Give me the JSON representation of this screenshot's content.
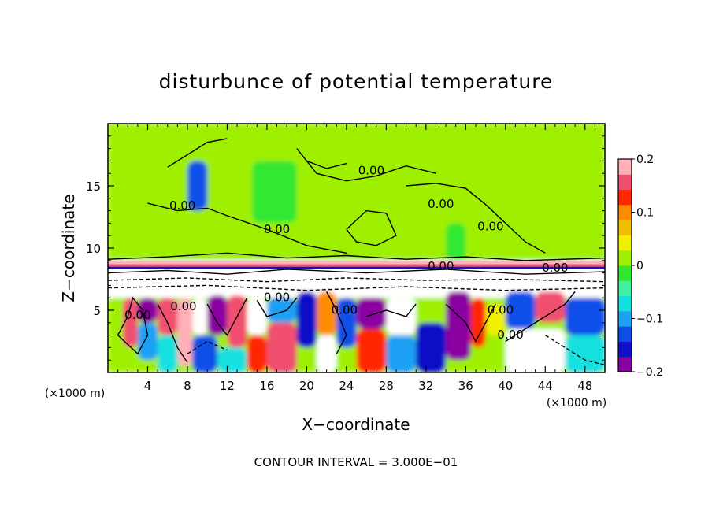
{
  "chart_data": {
    "type": "heatmap",
    "title": "disturbunce of potential temperature",
    "xlabel": "X−coordinate",
    "ylabel": "Z−coordinate",
    "x_unit": "(×1000 m)",
    "y_unit": "(×1000 m)",
    "xlim": [
      0,
      50
    ],
    "ylim": [
      0,
      20
    ],
    "x_ticks": [
      4,
      8,
      12,
      16,
      20,
      24,
      28,
      32,
      36,
      40,
      44,
      48
    ],
    "y_ticks": [
      5,
      10,
      15
    ],
    "contour_interval_text": "CONTOUR INTERVAL = 3.000E−01",
    "contour_labels": [
      {
        "text": "0.00",
        "x": 26.5,
        "y": 16.2
      },
      {
        "text": "0.00",
        "x": 7.5,
        "y": 13.4
      },
      {
        "text": "0.00",
        "x": 33.5,
        "y": 13.5
      },
      {
        "text": "0.00",
        "x": 17.0,
        "y": 11.5
      },
      {
        "text": "0.00",
        "x": 38.5,
        "y": 11.7
      },
      {
        "text": "0.00",
        "x": 33.5,
        "y": 8.5
      },
      {
        "text": "0.00",
        "x": 45.0,
        "y": 8.4
      },
      {
        "text": "0.00",
        "x": 17.0,
        "y": 6.0
      },
      {
        "text": "0.00",
        "x": 3.0,
        "y": 4.6
      },
      {
        "text": "0.00",
        "x": 7.6,
        "y": 5.3
      },
      {
        "text": "0.00",
        "x": 23.8,
        "y": 5.0
      },
      {
        "text": "0.00",
        "x": 39.5,
        "y": 5.0
      },
      {
        "text": "0.00",
        "x": 40.5,
        "y": 3.0
      }
    ],
    "colorbar": {
      "min": -0.2,
      "max": 0.2,
      "tick_values": [
        0.2,
        0.1,
        0,
        -0.1,
        -0.2
      ],
      "tick_labels": [
        "0.2",
        "0.1",
        "0",
        "−0.1",
        "−0.2"
      ],
      "colors": [
        "#8B00A0",
        "#1010C8",
        "#0B4FE8",
        "#1EA0F5",
        "#12E0E0",
        "#40F0A0",
        "#30E830",
        "#9FF000",
        "#F0F000",
        "#F0C000",
        "#FF8C00",
        "#FF2800",
        "#F05070",
        "#FFB0B8"
      ]
    },
    "cells": [
      {
        "x0": 0,
        "x1": 50,
        "y0": 9,
        "y1": 20,
        "value": 0.0
      },
      {
        "x0": 0,
        "x1": 50,
        "y0": 0,
        "y1": 6,
        "value": 0.0
      },
      {
        "x0": 0,
        "x1": 50,
        "y0": 6,
        "y1": 9,
        "value": null
      },
      {
        "x0": 0,
        "x1": 50,
        "y0": 8.7,
        "y1": 9.0,
        "value": 0.2
      },
      {
        "x0": 0,
        "x1": 50,
        "y0": 8.5,
        "y1": 8.7,
        "value": 0.15
      },
      {
        "x0": 0,
        "x1": 50,
        "y0": 8.35,
        "y1": 8.5,
        "value": -0.15
      },
      {
        "x0": 14.5,
        "x1": 19,
        "y0": 12,
        "y1": 17,
        "value": -0.01
      },
      {
        "x0": 34,
        "x1": 36,
        "y0": 9,
        "y1": 12,
        "value": -0.02
      },
      {
        "x0": 8,
        "x1": 10,
        "y0": 13,
        "y1": 17,
        "value": -0.12
      },
      {
        "x0": 0,
        "x1": 1.5,
        "y0": 3.5,
        "y1": 5,
        "value": 0.0
      },
      {
        "x0": 1.5,
        "x1": 3,
        "y0": 2,
        "y1": 6,
        "value": 0.16
      },
      {
        "x0": 3,
        "x1": 5,
        "y0": 4,
        "y1": 6,
        "value": -0.18
      },
      {
        "x0": 3,
        "x1": 5,
        "y0": 1,
        "y1": 4,
        "value": -0.1
      },
      {
        "x0": 5,
        "x1": 7,
        "y0": 3,
        "y1": 6,
        "value": 0.16
      },
      {
        "x0": 5,
        "x1": 7,
        "y0": 0,
        "y1": 3,
        "value": -0.06
      },
      {
        "x0": 7,
        "x1": 8.5,
        "y0": 0.5,
        "y1": 6,
        "value": 0.18
      },
      {
        "x0": 8.5,
        "x1": 10,
        "y0": 3,
        "y1": 6,
        "value": null
      },
      {
        "x0": 8.5,
        "x1": 11,
        "y0": 0,
        "y1": 3,
        "value": -0.14
      },
      {
        "x0": 10,
        "x1": 12,
        "y0": 3,
        "y1": 6.2,
        "value": -0.18
      },
      {
        "x0": 12,
        "x1": 14,
        "y0": 2,
        "y1": 6.2,
        "value": 0.15
      },
      {
        "x0": 11,
        "x1": 14,
        "y0": 0,
        "y1": 2,
        "value": -0.08
      },
      {
        "x0": 14,
        "x1": 16,
        "y0": 3,
        "y1": 6,
        "value": null
      },
      {
        "x0": 14,
        "x1": 16,
        "y0": 0,
        "y1": 3,
        "value": 0.12
      },
      {
        "x0": 16,
        "x1": 19,
        "y0": 4,
        "y1": 6,
        "value": -0.1
      },
      {
        "x0": 16,
        "x1": 19,
        "y0": 0,
        "y1": 4,
        "value": 0.17
      },
      {
        "x0": 19,
        "x1": 21,
        "y0": 2,
        "y1": 6.5,
        "value": -0.16
      },
      {
        "x0": 21,
        "x1": 23,
        "y0": 3,
        "y1": 6.5,
        "value": 0.1
      },
      {
        "x0": 21,
        "x1": 23,
        "y0": 0,
        "y1": 3,
        "value": null
      },
      {
        "x0": 23,
        "x1": 25,
        "y0": 2,
        "y1": 6,
        "value": -0.12
      },
      {
        "x0": 25,
        "x1": 28,
        "y0": 3.5,
        "y1": 6,
        "value": -0.18
      },
      {
        "x0": 25,
        "x1": 28,
        "y0": 0,
        "y1": 3.5,
        "value": 0.14
      },
      {
        "x0": 28,
        "x1": 31,
        "y0": 3,
        "y1": 6,
        "value": null
      },
      {
        "x0": 28,
        "x1": 31,
        "y0": 0,
        "y1": 3,
        "value": -0.1
      },
      {
        "x0": 31,
        "x1": 34,
        "y0": 4,
        "y1": 6,
        "value": 0.02
      },
      {
        "x0": 31,
        "x1": 34,
        "y0": 0,
        "y1": 4,
        "value": -0.16
      },
      {
        "x0": 34,
        "x1": 36.5,
        "y0": 1,
        "y1": 6.5,
        "value": -0.2
      },
      {
        "x0": 36.5,
        "x1": 38,
        "y0": 2,
        "y1": 6,
        "value": 0.12
      },
      {
        "x0": 38,
        "x1": 40,
        "y0": 3,
        "y1": 5.5,
        "value": 0.04
      },
      {
        "x0": 40,
        "x1": 43,
        "y0": 3.5,
        "y1": 6.5,
        "value": -0.12
      },
      {
        "x0": 43,
        "x1": 46,
        "y0": 4,
        "y1": 6.5,
        "value": 0.15
      },
      {
        "x0": 40,
        "x1": 46,
        "y0": 0,
        "y1": 3.5,
        "value": null
      },
      {
        "x0": 46,
        "x1": 50,
        "y0": 3,
        "y1": 6,
        "value": -0.14
      },
      {
        "x0": 46,
        "x1": 50,
        "y0": 0,
        "y1": 3,
        "value": -0.06
      }
    ],
    "contours": [
      {
        "style": "solid",
        "points": [
          [
            0,
            9.1
          ],
          [
            6,
            9.3
          ],
          [
            12,
            9.6
          ],
          [
            18,
            9.2
          ],
          [
            24,
            9.4
          ],
          [
            30,
            9.1
          ],
          [
            36,
            9.3
          ],
          [
            42,
            9.0
          ],
          [
            50,
            9.2
          ]
        ]
      },
      {
        "style": "solid",
        "points": [
          [
            4,
            13.6
          ],
          [
            7,
            13.0
          ],
          [
            10,
            13.2
          ],
          [
            12,
            12.6
          ],
          [
            16,
            11.5
          ],
          [
            20,
            10.2
          ],
          [
            24,
            9.6
          ]
        ]
      },
      {
        "style": "solid",
        "points": [
          [
            19,
            18.0
          ],
          [
            21,
            16.0
          ],
          [
            24,
            15.4
          ],
          [
            27,
            15.8
          ],
          [
            30,
            16.6
          ],
          [
            33,
            16.0
          ]
        ]
      },
      {
        "style": "solid",
        "points": [
          [
            24,
            11.5
          ],
          [
            26,
            13.0
          ],
          [
            28,
            12.8
          ],
          [
            29,
            11.0
          ],
          [
            27,
            10.2
          ],
          [
            25,
            10.5
          ],
          [
            24,
            11.5
          ]
        ]
      },
      {
        "style": "solid",
        "points": [
          [
            30,
            15.0
          ],
          [
            33,
            15.2
          ],
          [
            36,
            14.8
          ],
          [
            38,
            13.5
          ],
          [
            40,
            12.0
          ],
          [
            42,
            10.5
          ],
          [
            44,
            9.6
          ]
        ]
      },
      {
        "style": "solid",
        "points": [
          [
            6,
            16.5
          ],
          [
            8,
            17.5
          ],
          [
            10,
            18.5
          ],
          [
            12,
            18.8
          ]
        ]
      },
      {
        "style": "solid",
        "points": [
          [
            20,
            17.0
          ],
          [
            22,
            16.4
          ],
          [
            24,
            16.8
          ]
        ]
      },
      {
        "style": "dashed",
        "points": [
          [
            0,
            7.4
          ],
          [
            8,
            7.6
          ],
          [
            16,
            7.3
          ],
          [
            24,
            7.6
          ],
          [
            32,
            7.4
          ],
          [
            40,
            7.5
          ],
          [
            50,
            7.3
          ]
        ]
      },
      {
        "style": "dashed",
        "points": [
          [
            0,
            6.8
          ],
          [
            10,
            7.0
          ],
          [
            20,
            6.6
          ],
          [
            30,
            6.9
          ],
          [
            40,
            6.6
          ],
          [
            50,
            6.8
          ]
        ]
      },
      {
        "style": "solid",
        "points": [
          [
            0,
            8.0
          ],
          [
            6,
            8.2
          ],
          [
            12,
            7.9
          ],
          [
            18,
            8.3
          ],
          [
            26,
            8.0
          ],
          [
            34,
            8.3
          ],
          [
            42,
            7.9
          ],
          [
            50,
            8.1
          ]
        ]
      },
      {
        "style": "solid",
        "points": [
          [
            1,
            3.0
          ],
          [
            2,
            4.5
          ],
          [
            2.5,
            6.0
          ],
          [
            3.5,
            5.0
          ],
          [
            4,
            3.0
          ],
          [
            3,
            1.5
          ],
          [
            1,
            3.0
          ]
        ]
      },
      {
        "style": "solid",
        "points": [
          [
            5,
            5.5
          ],
          [
            6,
            4.0
          ],
          [
            7,
            2.0
          ],
          [
            8,
            0.8
          ]
        ]
      },
      {
        "style": "solid",
        "points": [
          [
            10,
            5.5
          ],
          [
            11,
            4.0
          ],
          [
            12,
            3.0
          ],
          [
            13,
            4.5
          ],
          [
            14,
            6.0
          ]
        ]
      },
      {
        "style": "solid",
        "points": [
          [
            15,
            5.8
          ],
          [
            16,
            4.5
          ],
          [
            18,
            5.0
          ],
          [
            19,
            6.0
          ]
        ]
      },
      {
        "style": "solid",
        "points": [
          [
            22,
            6.5
          ],
          [
            23,
            5.0
          ],
          [
            24,
            3.0
          ],
          [
            23,
            1.5
          ]
        ]
      },
      {
        "style": "solid",
        "points": [
          [
            26,
            4.5
          ],
          [
            28,
            5.0
          ],
          [
            30,
            4.5
          ],
          [
            31,
            5.5
          ]
        ]
      },
      {
        "style": "solid",
        "points": [
          [
            34,
            5.5
          ],
          [
            36,
            4.0
          ],
          [
            37,
            2.5
          ],
          [
            38,
            4.0
          ],
          [
            39,
            5.5
          ]
        ]
      },
      {
        "style": "solid",
        "points": [
          [
            40,
            2.5
          ],
          [
            42,
            3.5
          ],
          [
            44,
            4.5
          ],
          [
            46,
            5.5
          ],
          [
            47,
            6.5
          ]
        ]
      },
      {
        "style": "dashed",
        "points": [
          [
            44,
            3.0
          ],
          [
            46,
            2.0
          ],
          [
            48,
            1.0
          ],
          [
            50,
            0.6
          ]
        ]
      },
      {
        "style": "dashed",
        "points": [
          [
            8,
            1.5
          ],
          [
            10,
            2.5
          ],
          [
            12,
            1.8
          ]
        ]
      }
    ]
  }
}
